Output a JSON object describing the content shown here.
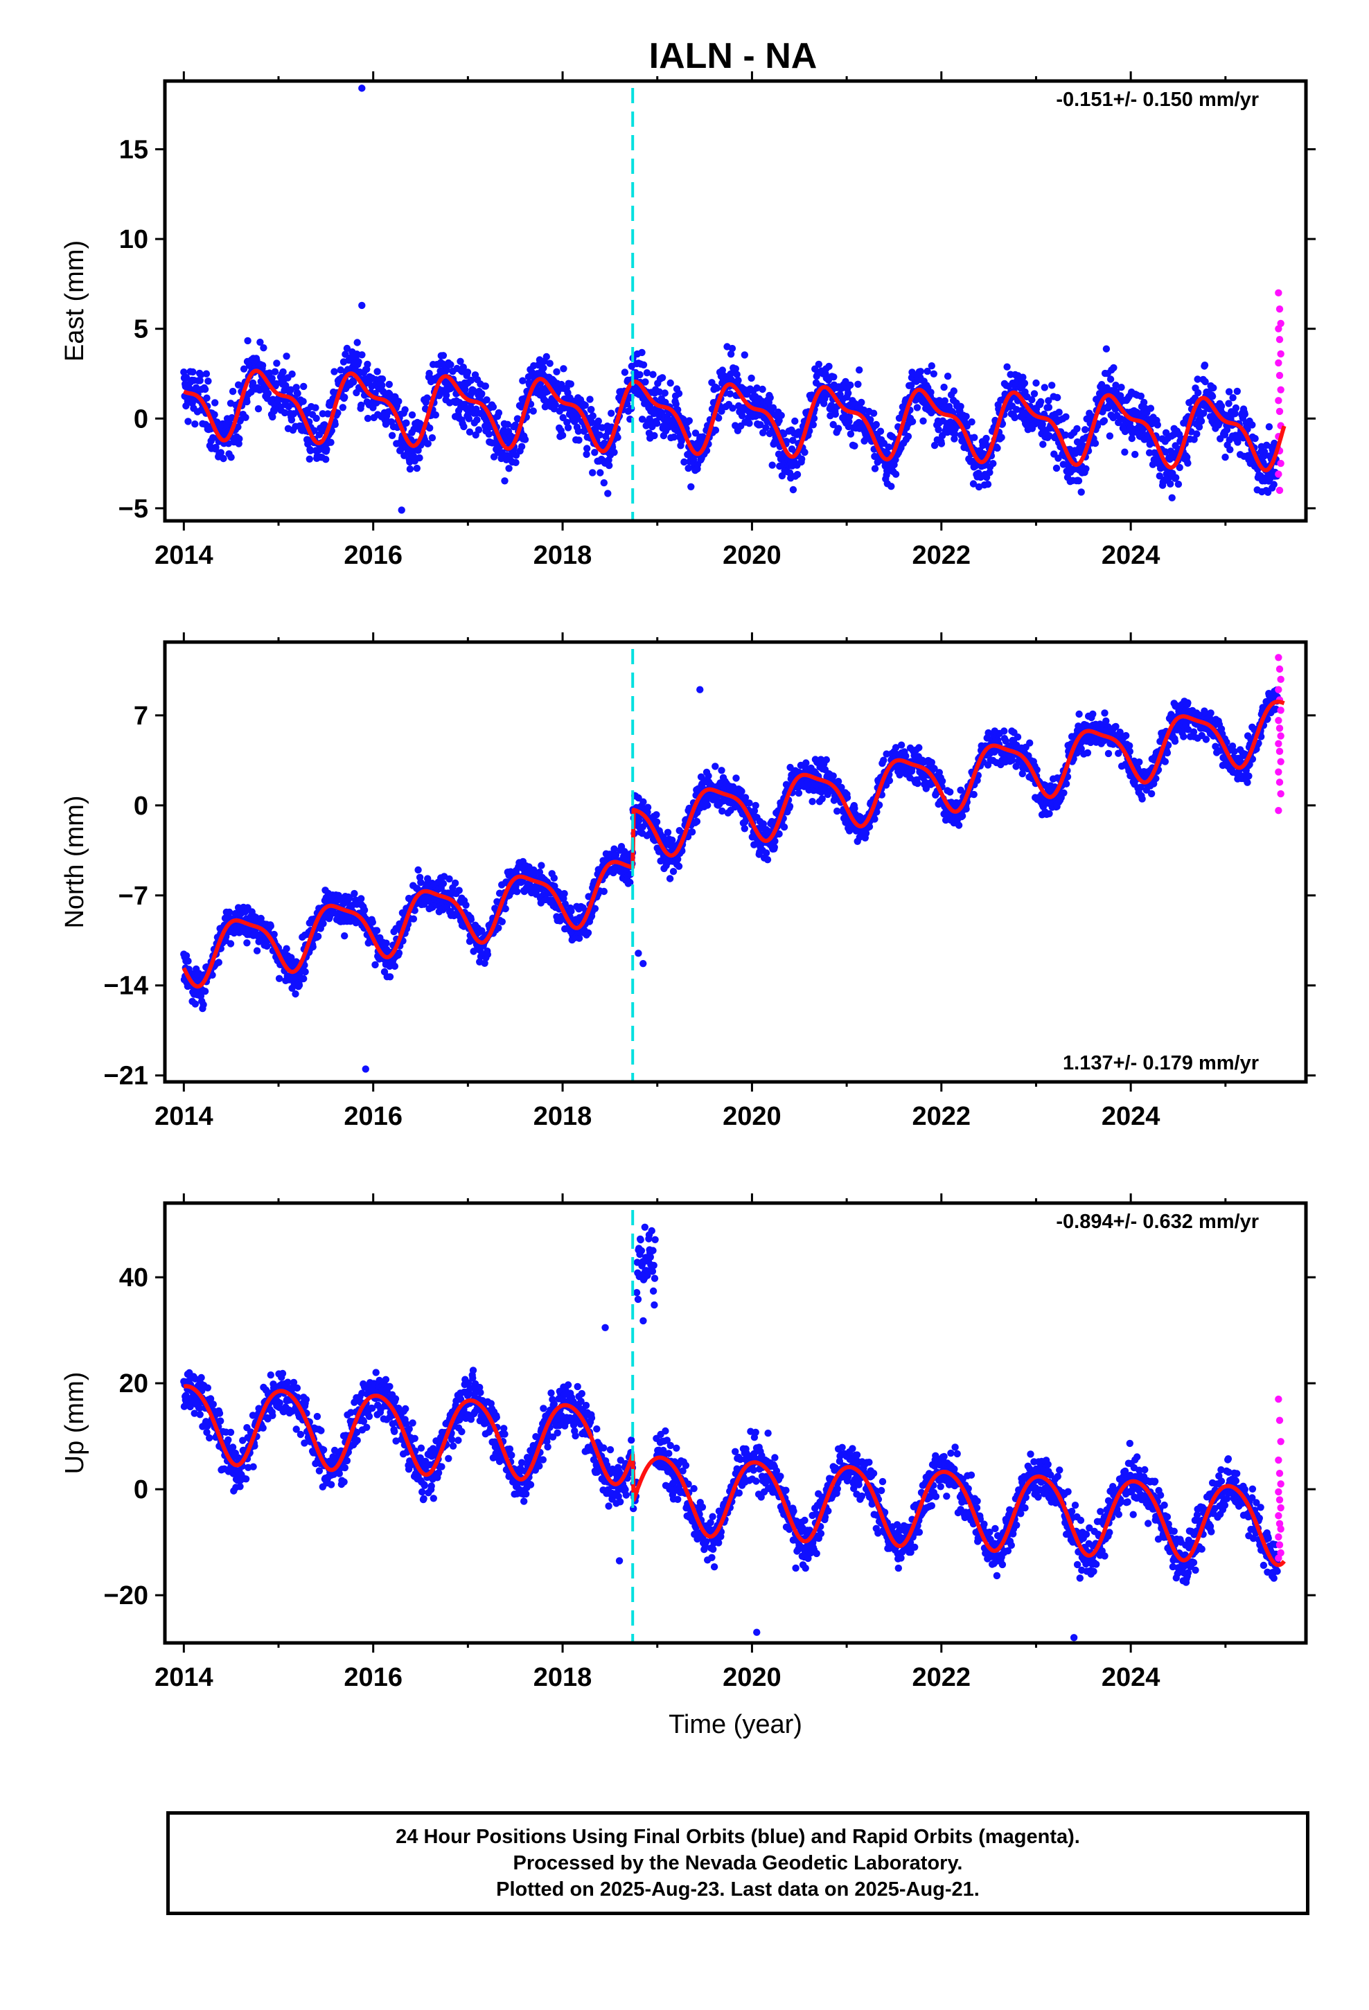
{
  "title": "IALN - NA",
  "caption": [
    "24 Hour Positions Using Final Orbits (blue) and Rapid Orbits (magenta).",
    "Processed by the Nevada Geodetic Laboratory.",
    "Plotted on 2025-Aug-23. Last data on 2025-Aug-21."
  ],
  "colors": {
    "final": "#1010ff",
    "rapid": "#ff10ff",
    "model": "#ff1010",
    "event_line": "#00e0e0"
  },
  "chart_data": [
    {
      "type": "scatter",
      "ylabel": "East (mm)",
      "xlabel": "",
      "rate_text": "-0.151+/- 0.150 mm/yr",
      "rate_position": "top-right",
      "xlim": [
        2013.8,
        2025.85
      ],
      "ylim": [
        -5.7,
        18.8
      ],
      "yticks": [
        -5,
        0,
        5,
        10,
        15
      ],
      "xticks": [
        2014,
        2016,
        2018,
        2020,
        2022,
        2024
      ],
      "event_x": 2018.74,
      "model": {
        "rate": -0.151,
        "offset": 1.0,
        "annual_amp": 1.6,
        "annual_phase": 0.62,
        "semi_amp": 0.7,
        "semi_phase": 0.58,
        "jump": 0,
        "noise": 1.15
      },
      "outliers": [
        [
          2015.88,
          18.4
        ],
        [
          2015.88,
          6.3
        ],
        [
          2016.3,
          -5.1
        ]
      ],
      "rapid": [
        7.0,
        6.1,
        5.3,
        5.0,
        4.4,
        3.6,
        3.1,
        2.4,
        1.6,
        1.0,
        0.4,
        -0.4,
        -1.0,
        -1.8,
        -2.5,
        -3.1,
        -4.0
      ]
    },
    {
      "type": "scatter",
      "ylabel": "North (mm)",
      "xlabel": "",
      "rate_text": "1.137+/- 0.179 mm/yr",
      "rate_position": "bottom-right",
      "xlim": [
        2013.8,
        2025.85
      ],
      "ylim": [
        -21.5,
        12.7
      ],
      "yticks": [
        -21,
        -14,
        -7,
        0,
        7
      ],
      "xticks": [
        2014,
        2016,
        2018,
        2020,
        2022,
        2024
      ],
      "event_x": 2018.74,
      "model": {
        "rate": 1.137,
        "offset": -11.5,
        "annual_amp": 2.2,
        "annual_phase": 0.38,
        "semi_amp": 0.6,
        "semi_phase": 0.3,
        "jump": 4.5,
        "noise": 1.0
      },
      "outliers": [
        [
          2015.92,
          -20.5
        ],
        [
          2018.8,
          -11.5
        ],
        [
          2018.85,
          -12.3
        ],
        [
          2019.45,
          9.0
        ]
      ],
      "rapid": [
        11.5,
        10.6,
        9.8,
        9.0,
        8.2,
        7.4,
        6.6,
        6.0,
        5.4,
        4.8,
        4.2,
        3.4,
        2.6,
        1.8,
        0.9,
        -0.4
      ]
    },
    {
      "type": "scatter",
      "ylabel": "Up (mm)",
      "xlabel": "Time (year)",
      "rate_text": "-0.894+/- 0.632 mm/yr",
      "rate_position": "top-right",
      "xlim": [
        2013.8,
        2025.85
      ],
      "ylim": [
        -29,
        54
      ],
      "yticks": [
        -20,
        0,
        20,
        40
      ],
      "xticks": [
        2014,
        2016,
        2018,
        2020,
        2022,
        2024
      ],
      "event_x": 2018.74,
      "model": {
        "rate": -0.894,
        "offset": 13.0,
        "annual_amp": 7.2,
        "annual_phase": 0.8,
        "semi_amp": 0.8,
        "semi_phase": 0.2,
        "jump": -9.0,
        "noise": 3.2
      },
      "outliers": [
        [
          2018.6,
          -13.5
        ],
        [
          2018.45,
          30.5
        ],
        [
          2023.4,
          -28.0
        ],
        [
          2020.05,
          -27.0
        ]
      ],
      "spike": {
        "x0": 2018.78,
        "x1": 2018.98,
        "mean": 43,
        "spread": 5
      },
      "rapid": [
        17.0,
        13.0,
        9.0,
        5.5,
        3.0,
        1.0,
        -0.5,
        -2.0,
        -3.5,
        -5.0,
        -6.5,
        -7.5,
        -9.0,
        -10.5,
        -12.0,
        -13.0
      ]
    }
  ]
}
